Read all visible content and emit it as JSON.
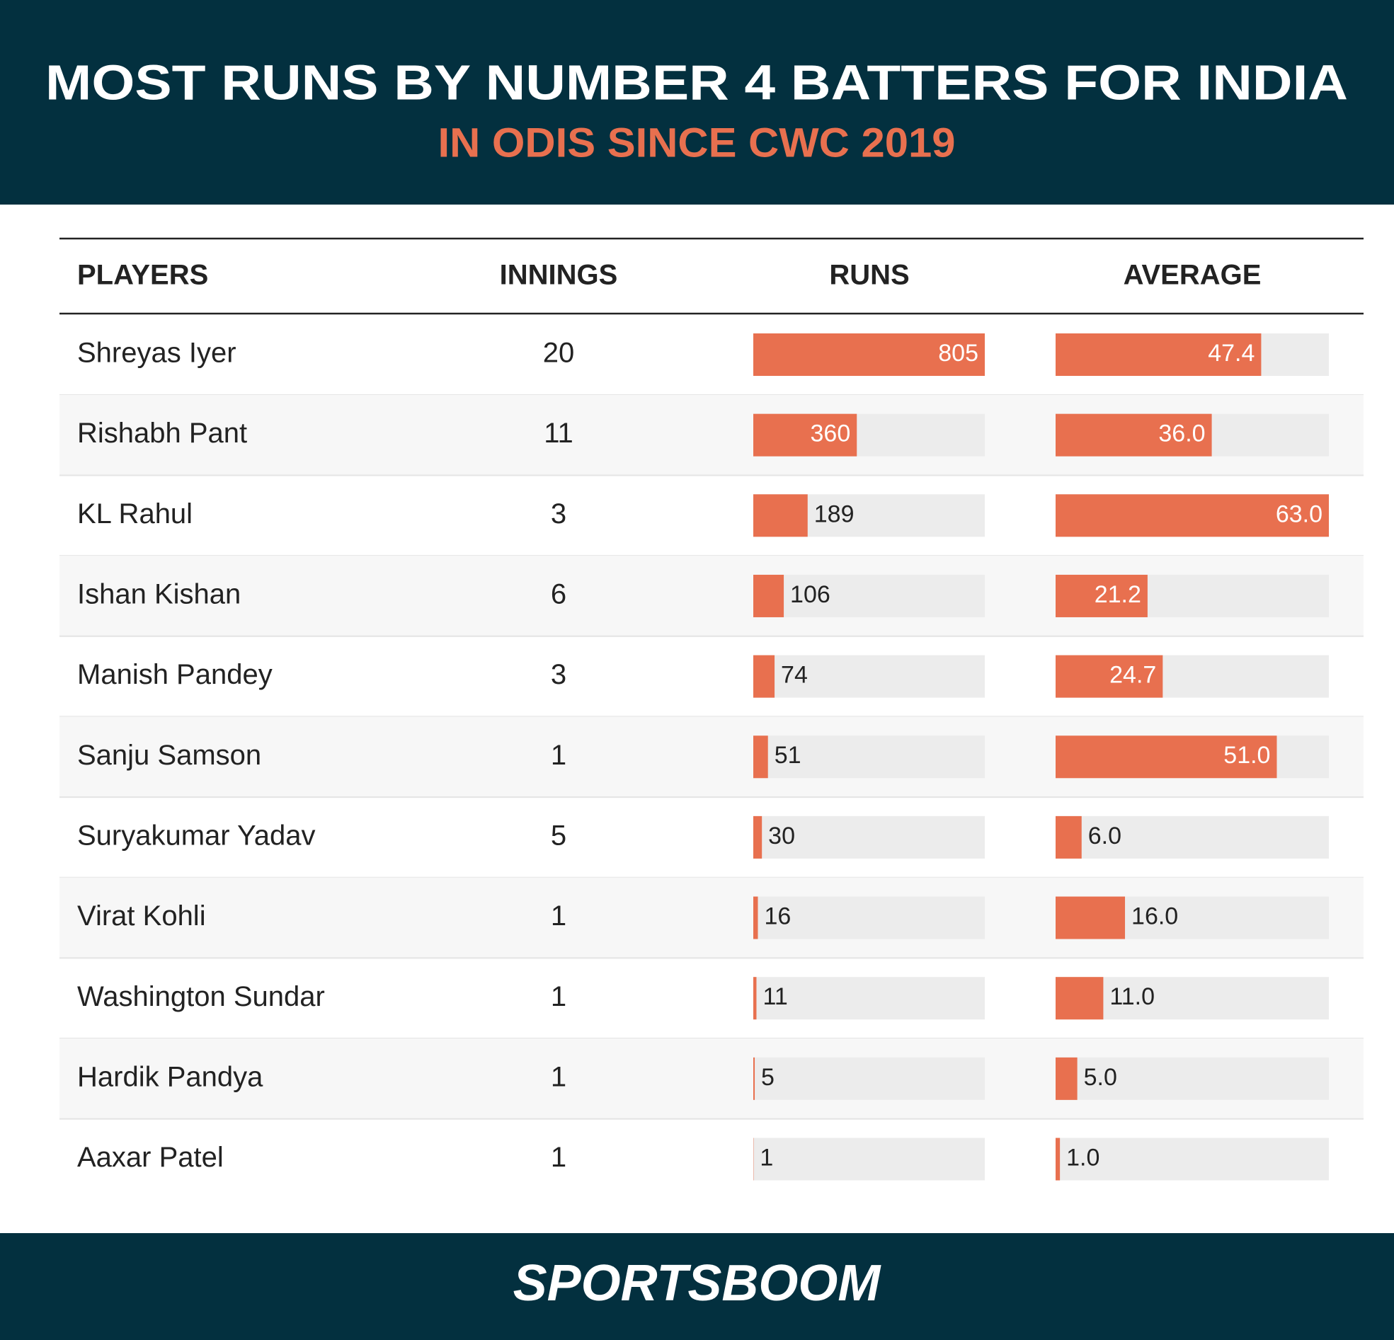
{
  "title": "MOST RUNS BY NUMBER 4 BATTERS FOR INDIA",
  "subtitle": "IN ODIS SINCE CWC 2019",
  "brand": "SPORTSBOOM",
  "chart_data": {
    "type": "bar-table",
    "category_header": "PLAYERS",
    "categories": [
      "Shreyas Iyer",
      "Rishabh Pant",
      "KL Rahul",
      "Ishan Kishan",
      "Manish Pandey",
      "Sanju Samson",
      "Suryakumar Yadav",
      "Virat Kohli",
      "Washington Sundar",
      "Hardik Pandya",
      "Aaxar Patel"
    ],
    "series": [
      {
        "name": "INNINGS",
        "values": [
          20,
          11,
          3,
          6,
          3,
          1,
          5,
          1,
          1,
          1,
          1
        ]
      },
      {
        "name": "RUNS",
        "color": "#e8704f",
        "values": [
          805,
          360,
          189,
          106,
          74,
          51,
          30,
          16,
          11,
          5,
          1
        ],
        "xlim": [
          0,
          805
        ]
      },
      {
        "name": "AVERAGE",
        "color": "#e8704f",
        "values": [
          47.4,
          36,
          63,
          21.2,
          24.7,
          51,
          6,
          16,
          11,
          5,
          1
        ],
        "value_labels": [
          "47.4",
          "36.0",
          "63.0",
          "21.2",
          "24.7",
          "51.0",
          "6.0",
          "16.0",
          "11.0",
          "5.0",
          "1.0"
        ],
        "xlim": [
          0,
          63
        ]
      }
    ]
  }
}
